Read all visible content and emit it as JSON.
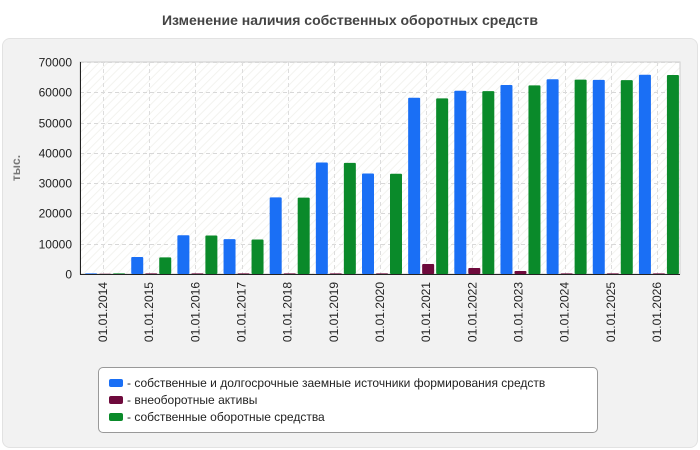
{
  "chart_data": {
    "type": "bar",
    "title": "Изменение наличия собственных оборотных средств",
    "ylabel": "тыс.",
    "xlabel": "",
    "ylim": [
      0,
      70000
    ],
    "yticks": [
      0,
      10000,
      20000,
      30000,
      40000,
      50000,
      60000,
      70000
    ],
    "grid": true,
    "legend_position": "bottom",
    "categories": [
      "01.01.2014",
      "01.01.2015",
      "01.01.2016",
      "01.01.2017",
      "01.01.2018",
      "01.01.2019",
      "01.01.2020",
      "01.01.2021",
      "01.01.2022",
      "01.01.2023",
      "01.01.2024",
      "01.01.2025",
      "01.01.2026"
    ],
    "series": [
      {
        "name": "- собственные и долгосрочные заемные источники формирования средств",
        "color": "#1a6ff5",
        "values": [
          200,
          5600,
          12800,
          11500,
          25300,
          36800,
          33200,
          58200,
          60500,
          62400,
          64300,
          64100,
          65800
        ]
      },
      {
        "name": "- внеоборотные активы",
        "color": "#6e0a3c",
        "values": [
          100,
          200,
          200,
          200,
          200,
          200,
          200,
          3300,
          2000,
          1000,
          200,
          200,
          200
        ]
      },
      {
        "name": "- собственные оборотные средства",
        "color": "#0a8a2a",
        "values": [
          200,
          5500,
          12700,
          11400,
          25200,
          36700,
          33100,
          58000,
          60400,
          62300,
          64200,
          64000,
          65700
        ]
      }
    ]
  }
}
